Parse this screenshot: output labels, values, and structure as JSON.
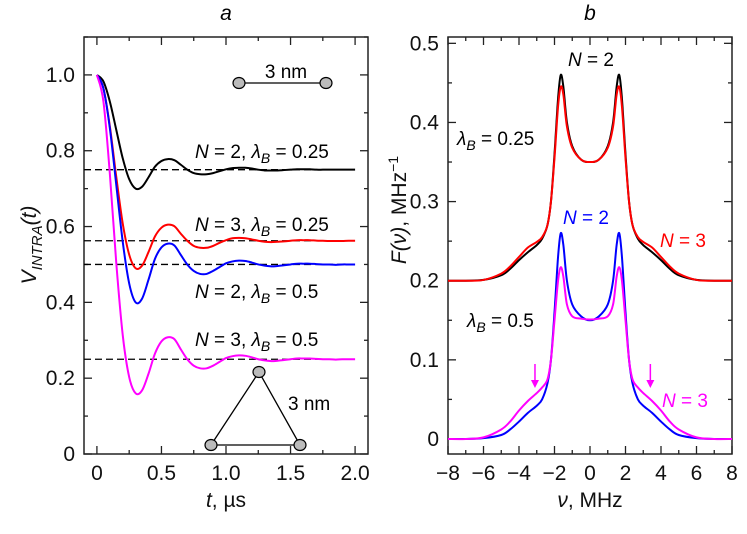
{
  "chart_data": [
    {
      "panel_label": "a",
      "type": "line",
      "xlabel": {
        "var": "t",
        "unit": ", µs"
      },
      "ylabel": {
        "main": "V",
        "sub": "INTRA",
        "arg": "(t)"
      },
      "xlim": [
        -0.1,
        2.1
      ],
      "ylim": [
        0,
        1.1
      ],
      "x_ticks": [
        {
          "v": 0,
          "label": "0"
        },
        {
          "v": 0.5,
          "label": "0.5"
        },
        {
          "v": 1.0,
          "label": "1.0"
        },
        {
          "v": 1.5,
          "label": "1.5"
        },
        {
          "v": 2.0,
          "label": "2.0"
        }
      ],
      "y_ticks": [
        {
          "v": 0,
          "label": "0"
        },
        {
          "v": 0.2,
          "label": "0.2"
        },
        {
          "v": 0.4,
          "label": "0.4"
        },
        {
          "v": 0.6,
          "label": "0.6"
        },
        {
          "v": 0.8,
          "label": "0.8"
        },
        {
          "v": 1.0,
          "label": "1.0"
        }
      ],
      "x_minor_step": 0.25,
      "y_minor_step": 0.1,
      "grid": false,
      "x": [
        0,
        0.05,
        0.1,
        0.15,
        0.2,
        0.25,
        0.3,
        0.35,
        0.4,
        0.45,
        0.5,
        0.55,
        0.6,
        0.65,
        0.7,
        0.75,
        0.8,
        0.85,
        0.9,
        0.95,
        1.0,
        1.05,
        1.1,
        1.15,
        1.2,
        1.25,
        1.3,
        1.35,
        1.4,
        1.45,
        1.5,
        1.55,
        1.6,
        1.65,
        1.7,
        1.75,
        1.8,
        1.85,
        1.9,
        1.95,
        2.0
      ],
      "series": [
        {
          "label": {
            "N": "N",
            "a": " = 2, ",
            "lam": "λ",
            "sub": "B",
            "b": " = 0.25"
          },
          "color": "#000000",
          "asymptote": 0.75,
          "values": [
            1.0,
            0.983,
            0.93,
            0.855,
            0.78,
            0.725,
            0.7,
            0.705,
            0.73,
            0.758,
            0.773,
            0.778,
            0.775,
            0.763,
            0.75,
            0.741,
            0.738,
            0.738,
            0.741,
            0.746,
            0.751,
            0.754,
            0.755,
            0.755,
            0.753,
            0.75,
            0.748,
            0.748,
            0.748,
            0.749,
            0.75,
            0.751,
            0.751,
            0.751,
            0.75,
            0.75,
            0.75,
            0.75,
            0.75,
            0.75,
            0.75
          ]
        },
        {
          "label": {
            "N": "N",
            "a": " = 3, ",
            "lam": "λ",
            "sub": "B",
            "b": " = 0.25"
          },
          "color": "#ff0000",
          "asymptote": 0.5625,
          "values": [
            1.0,
            0.965,
            0.865,
            0.731,
            0.608,
            0.526,
            0.49,
            0.497,
            0.533,
            0.574,
            0.597,
            0.605,
            0.601,
            0.581,
            0.5625,
            0.549,
            0.544,
            0.544,
            0.549,
            0.557,
            0.564,
            0.569,
            0.57,
            0.569,
            0.566,
            0.5625,
            0.56,
            0.559,
            0.56,
            0.561,
            0.5625,
            0.564,
            0.564,
            0.564,
            0.563,
            0.5625,
            0.562,
            0.562,
            0.562,
            0.5625,
            0.5625
          ]
        },
        {
          "label": {
            "N": "N",
            "a": " = 2, ",
            "lam": "λ",
            "sub": "B",
            "b": " = 0.5"
          },
          "color": "#0000ff",
          "asymptote": 0.5,
          "values": [
            1.0,
            0.965,
            0.86,
            0.71,
            0.56,
            0.45,
            0.4,
            0.41,
            0.46,
            0.515,
            0.545,
            0.555,
            0.55,
            0.525,
            0.5,
            0.483,
            0.475,
            0.475,
            0.483,
            0.493,
            0.503,
            0.508,
            0.51,
            0.509,
            0.505,
            0.5,
            0.497,
            0.495,
            0.496,
            0.498,
            0.5,
            0.502,
            0.502,
            0.502,
            0.501,
            0.5,
            0.5,
            0.499,
            0.5,
            0.5,
            0.5
          ]
        },
        {
          "label": {
            "N": "N",
            "a": " = 3, ",
            "lam": "λ",
            "sub": "B",
            "b": " = 0.5"
          },
          "color": "#ff00ff",
          "asymptote": 0.25,
          "values": [
            1.0,
            0.931,
            0.74,
            0.504,
            0.314,
            0.203,
            0.16,
            0.168,
            0.212,
            0.265,
            0.297,
            0.308,
            0.303,
            0.276,
            0.25,
            0.233,
            0.226,
            0.226,
            0.233,
            0.243,
            0.253,
            0.258,
            0.26,
            0.259,
            0.255,
            0.25,
            0.247,
            0.245,
            0.246,
            0.248,
            0.25,
            0.252,
            0.252,
            0.252,
            0.251,
            0.25,
            0.25,
            0.249,
            0.25,
            0.25,
            0.25
          ]
        }
      ],
      "insets": {
        "pair_label": "3 nm",
        "triangle_label": "3 nm"
      }
    },
    {
      "panel_label": "b",
      "type": "line",
      "xlabel": {
        "var": "ν",
        "unit": ", MHz"
      },
      "ylabel": {
        "main": "F(ν)",
        "unit": ", MHz",
        "sup": "−1"
      },
      "xlim": [
        -8,
        8
      ],
      "ylim": [
        -0.019,
        0.508
      ],
      "x_ticks": [
        {
          "v": -8,
          "label": "−8"
        },
        {
          "v": -6,
          "label": "−6"
        },
        {
          "v": -4,
          "label": "−4"
        },
        {
          "v": -2,
          "label": "−2"
        },
        {
          "v": 0,
          "label": "0"
        },
        {
          "v": 2,
          "label": "2"
        },
        {
          "v": 4,
          "label": "4"
        },
        {
          "v": 6,
          "label": "6"
        },
        {
          "v": 8,
          "label": "8"
        }
      ],
      "y_ticks": [
        {
          "v": 0,
          "label": "0"
        },
        {
          "v": 0.1,
          "label": "0.1"
        },
        {
          "v": 0.2,
          "label": "0.2"
        },
        {
          "v": 0.3,
          "label": "0.3"
        },
        {
          "v": 0.4,
          "label": "0.4"
        },
        {
          "v": 0.5,
          "label": "0.5"
        }
      ],
      "x_minor_step": 1,
      "y_minor_step": 0.05,
      "grid": false,
      "x": [
        -8,
        -7,
        -6,
        -5,
        -4.5,
        -4,
        -3.5,
        -3,
        -2.7,
        -2.4,
        -2.2,
        -2,
        -1.8,
        -1.65,
        -1.5,
        -1.3,
        -1,
        -0.5,
        0,
        0.5,
        1,
        1.3,
        1.5,
        1.65,
        1.8,
        2,
        2.2,
        2.4,
        2.7,
        3,
        3.5,
        4,
        4.5,
        5,
        6,
        7,
        8
      ],
      "series": [
        {
          "name": "N = 2, λB = 0.25",
          "color": "#000000",
          "values": [
            0.2,
            0.2,
            0.201,
            0.207,
            0.215,
            0.226,
            0.236,
            0.245,
            0.253,
            0.27,
            0.3,
            0.36,
            0.43,
            0.46,
            0.445,
            0.4,
            0.37,
            0.353,
            0.35,
            0.353,
            0.37,
            0.4,
            0.445,
            0.46,
            0.43,
            0.36,
            0.3,
            0.27,
            0.253,
            0.245,
            0.236,
            0.226,
            0.215,
            0.207,
            0.201,
            0.2,
            0.2
          ]
        },
        {
          "name": "N = 3, λB = 0.25",
          "color": "#ff0000",
          "values": [
            0.2,
            0.2,
            0.201,
            0.209,
            0.218,
            0.23,
            0.242,
            0.249,
            0.255,
            0.27,
            0.3,
            0.355,
            0.42,
            0.445,
            0.435,
            0.395,
            0.368,
            0.353,
            0.35,
            0.353,
            0.368,
            0.395,
            0.435,
            0.445,
            0.42,
            0.355,
            0.3,
            0.27,
            0.255,
            0.249,
            0.242,
            0.23,
            0.218,
            0.209,
            0.201,
            0.2,
            0.2
          ]
        },
        {
          "name": "N = 2, λB = 0.5",
          "color": "#0000ff",
          "values": [
            0,
            0,
            0.001,
            0.005,
            0.012,
            0.022,
            0.033,
            0.042,
            0.05,
            0.07,
            0.1,
            0.16,
            0.23,
            0.26,
            0.245,
            0.2,
            0.17,
            0.155,
            0.15,
            0.155,
            0.17,
            0.2,
            0.245,
            0.26,
            0.23,
            0.16,
            0.1,
            0.07,
            0.05,
            0.042,
            0.033,
            0.022,
            0.012,
            0.005,
            0.001,
            0,
            0
          ]
        },
        {
          "name": "N = 3, λB = 0.5",
          "color": "#ff00ff",
          "values": [
            0,
            0,
            0.002,
            0.012,
            0.022,
            0.036,
            0.048,
            0.058,
            0.065,
            0.075,
            0.1,
            0.15,
            0.2,
            0.217,
            0.205,
            0.17,
            0.155,
            0.152,
            0.151,
            0.152,
            0.155,
            0.17,
            0.205,
            0.217,
            0.2,
            0.15,
            0.1,
            0.075,
            0.065,
            0.058,
            0.048,
            0.036,
            0.022,
            0.012,
            0.002,
            0,
            0
          ]
        }
      ],
      "annotations": {
        "n2_top": {
          "N": "N",
          "rest": " = 2"
        },
        "lambda_025": {
          "lam": "λ",
          "sub": "B",
          "rest": " = 0.25"
        },
        "n2_blue": {
          "N": "N",
          "rest": " = 2"
        },
        "n3_red": {
          "N": "N",
          "rest": " = 3"
        },
        "lambda_05": {
          "lam": "λ",
          "sub": "B",
          "rest": " = 0.5"
        },
        "n3_magenta": {
          "N": "N",
          "rest": " = 3"
        },
        "arrows_at_nu": [
          -3.1,
          3.4
        ]
      }
    }
  ]
}
